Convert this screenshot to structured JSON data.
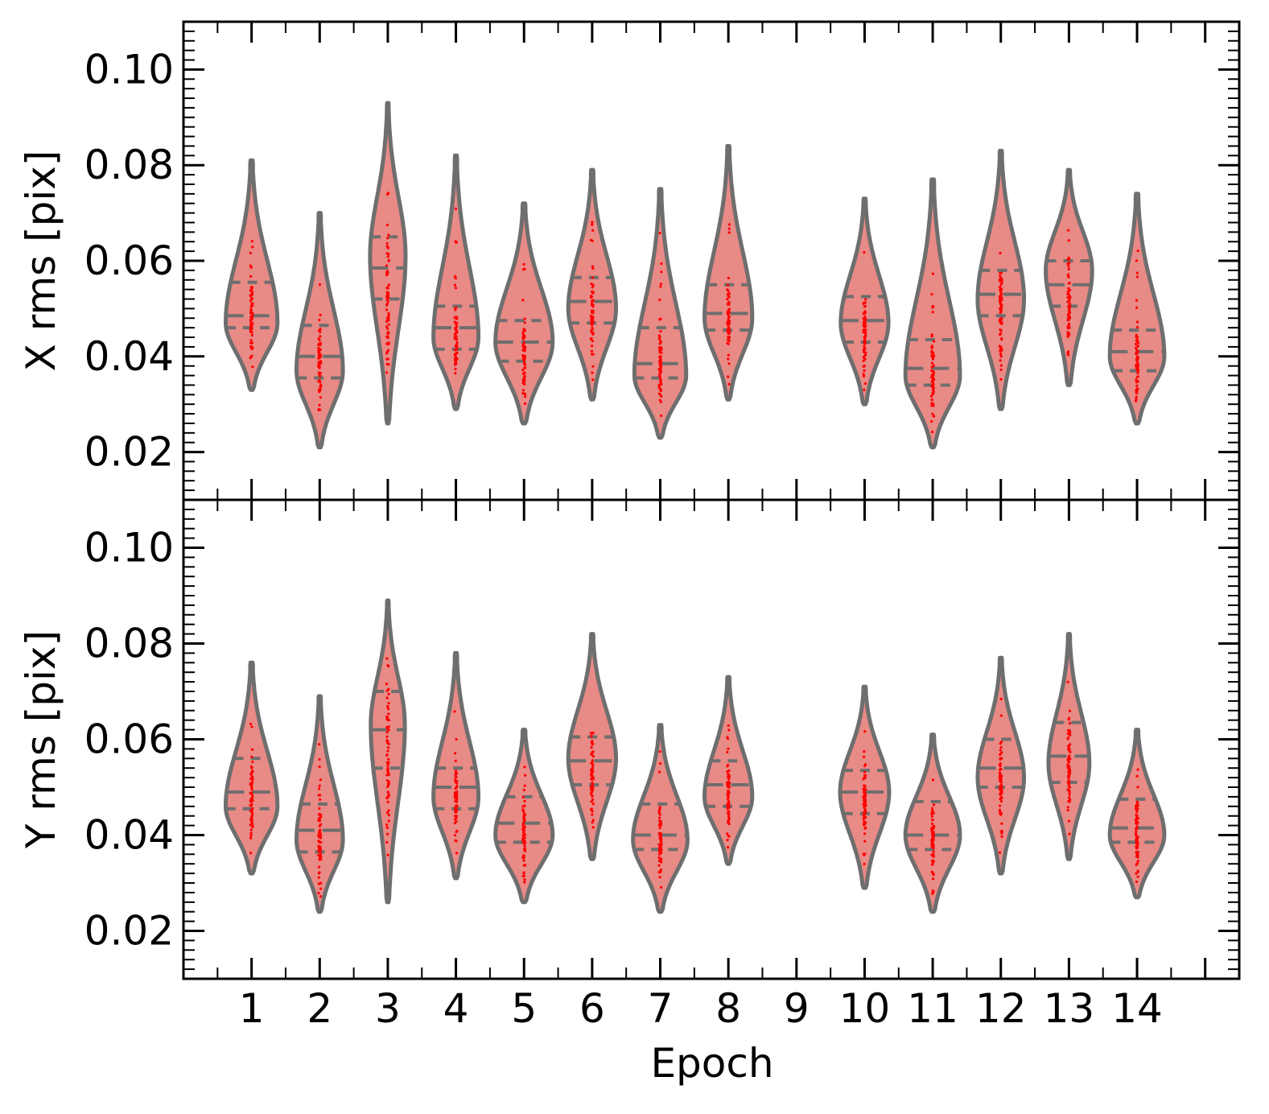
{
  "chart_data": {
    "type": "violin",
    "colors": {
      "violin_fill": "#e88a86",
      "violin_edge": "#6e6e6e",
      "quartile_line": "#6e6e6e",
      "points": "#ff0000",
      "axis": "#000000"
    },
    "x": {
      "label": "Epoch",
      "ticks": [
        "1",
        "2",
        "3",
        "4",
        "5",
        "6",
        "7",
        "8",
        "9",
        "10",
        "11",
        "12",
        "13",
        "14"
      ],
      "range": [
        0,
        15.5
      ]
    },
    "panels": [
      {
        "id": "x",
        "ylabel": "X rms [pix]",
        "ylim": [
          0.01,
          0.11
        ],
        "yticks": [
          "0.02",
          "0.04",
          "0.06",
          "0.08",
          "0.10"
        ],
        "violins": [
          {
            "epoch": 1,
            "min": 0.033,
            "max": 0.081,
            "q1": 0.046,
            "median": 0.0485,
            "q3": 0.0555,
            "mode": 0.047,
            "width": 0.38
          },
          {
            "epoch": 2,
            "min": 0.021,
            "max": 0.07,
            "q1": 0.0355,
            "median": 0.04,
            "q3": 0.0465,
            "mode": 0.037,
            "width": 0.34
          },
          {
            "epoch": 3,
            "min": 0.026,
            "max": 0.093,
            "q1": 0.052,
            "median": 0.0585,
            "q3": 0.065,
            "mode": 0.061,
            "width": 0.26
          },
          {
            "epoch": 4,
            "min": 0.029,
            "max": 0.082,
            "q1": 0.0415,
            "median": 0.046,
            "q3": 0.0505,
            "mode": 0.044,
            "width": 0.33
          },
          {
            "epoch": 5,
            "min": 0.026,
            "max": 0.072,
            "q1": 0.039,
            "median": 0.043,
            "q3": 0.0475,
            "mode": 0.043,
            "width": 0.42
          },
          {
            "epoch": 6,
            "min": 0.031,
            "max": 0.079,
            "q1": 0.047,
            "median": 0.0515,
            "q3": 0.0565,
            "mode": 0.05,
            "width": 0.35
          },
          {
            "epoch": 7,
            "min": 0.023,
            "max": 0.075,
            "q1": 0.0355,
            "median": 0.0385,
            "q3": 0.046,
            "mode": 0.036,
            "width": 0.38
          },
          {
            "epoch": 8,
            "min": 0.031,
            "max": 0.084,
            "q1": 0.0455,
            "median": 0.049,
            "q3": 0.055,
            "mode": 0.048,
            "width": 0.35
          },
          {
            "epoch": 10,
            "min": 0.03,
            "max": 0.073,
            "q1": 0.043,
            "median": 0.0475,
            "q3": 0.0525,
            "mode": 0.047,
            "width": 0.35
          },
          {
            "epoch": 11,
            "min": 0.021,
            "max": 0.077,
            "q1": 0.034,
            "median": 0.0375,
            "q3": 0.0435,
            "mode": 0.036,
            "width": 0.4
          },
          {
            "epoch": 12,
            "min": 0.029,
            "max": 0.083,
            "q1": 0.0485,
            "median": 0.053,
            "q3": 0.058,
            "mode": 0.052,
            "width": 0.34
          },
          {
            "epoch": 13,
            "min": 0.034,
            "max": 0.079,
            "q1": 0.0505,
            "median": 0.055,
            "q3": 0.06,
            "mode": 0.058,
            "width": 0.34
          },
          {
            "epoch": 14,
            "min": 0.026,
            "max": 0.074,
            "q1": 0.037,
            "median": 0.041,
            "q3": 0.0455,
            "mode": 0.04,
            "width": 0.4
          }
        ]
      },
      {
        "id": "y",
        "ylabel": "Y rms [pix]",
        "ylim": [
          0.01,
          0.11
        ],
        "yticks": [
          "0.02",
          "0.04",
          "0.06",
          "0.08",
          "0.10"
        ],
        "violins": [
          {
            "epoch": 1,
            "min": 0.032,
            "max": 0.076,
            "q1": 0.0455,
            "median": 0.049,
            "q3": 0.056,
            "mode": 0.046,
            "width": 0.38
          },
          {
            "epoch": 2,
            "min": 0.024,
            "max": 0.069,
            "q1": 0.0365,
            "median": 0.041,
            "q3": 0.0465,
            "mode": 0.039,
            "width": 0.34
          },
          {
            "epoch": 3,
            "min": 0.026,
            "max": 0.089,
            "q1": 0.054,
            "median": 0.062,
            "q3": 0.07,
            "mode": 0.063,
            "width": 0.25
          },
          {
            "epoch": 4,
            "min": 0.031,
            "max": 0.078,
            "q1": 0.0455,
            "median": 0.05,
            "q3": 0.054,
            "mode": 0.048,
            "width": 0.33
          },
          {
            "epoch": 5,
            "min": 0.026,
            "max": 0.062,
            "q1": 0.0385,
            "median": 0.0425,
            "q3": 0.048,
            "mode": 0.04,
            "width": 0.42
          },
          {
            "epoch": 6,
            "min": 0.035,
            "max": 0.082,
            "q1": 0.0505,
            "median": 0.0555,
            "q3": 0.0605,
            "mode": 0.056,
            "width": 0.35
          },
          {
            "epoch": 7,
            "min": 0.024,
            "max": 0.063,
            "q1": 0.037,
            "median": 0.04,
            "q3": 0.0465,
            "mode": 0.039,
            "width": 0.4
          },
          {
            "epoch": 8,
            "min": 0.034,
            "max": 0.073,
            "q1": 0.046,
            "median": 0.0505,
            "q3": 0.0555,
            "mode": 0.048,
            "width": 0.35
          },
          {
            "epoch": 10,
            "min": 0.029,
            "max": 0.071,
            "q1": 0.0445,
            "median": 0.049,
            "q3": 0.0535,
            "mode": 0.049,
            "width": 0.36
          },
          {
            "epoch": 11,
            "min": 0.024,
            "max": 0.061,
            "q1": 0.037,
            "median": 0.04,
            "q3": 0.047,
            "mode": 0.04,
            "width": 0.4
          },
          {
            "epoch": 12,
            "min": 0.032,
            "max": 0.077,
            "q1": 0.05,
            "median": 0.054,
            "q3": 0.06,
            "mode": 0.052,
            "width": 0.34
          },
          {
            "epoch": 13,
            "min": 0.035,
            "max": 0.082,
            "q1": 0.051,
            "median": 0.0565,
            "q3": 0.0635,
            "mode": 0.055,
            "width": 0.3
          },
          {
            "epoch": 14,
            "min": 0.027,
            "max": 0.062,
            "q1": 0.0385,
            "median": 0.0415,
            "q3": 0.0475,
            "mode": 0.04,
            "width": 0.4
          }
        ]
      }
    ]
  }
}
